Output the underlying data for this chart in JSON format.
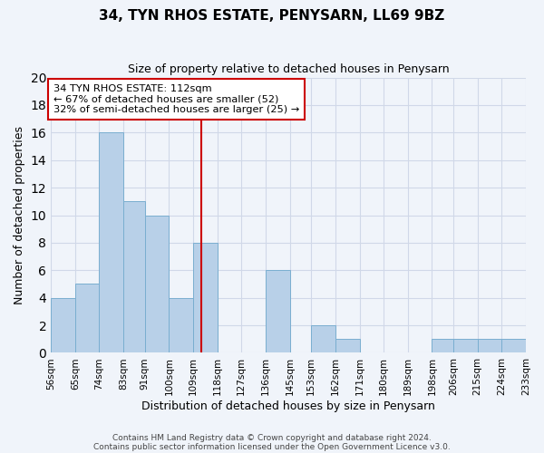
{
  "title": "34, TYN RHOS ESTATE, PENYSARN, LL69 9BZ",
  "subtitle": "Size of property relative to detached houses in Penysarn",
  "xlabel": "Distribution of detached houses by size in Penysarn",
  "ylabel": "Number of detached properties",
  "bar_color": "#b8d0e8",
  "bar_edge_color": "#7aaed0",
  "bins": [
    56,
    65,
    74,
    83,
    91,
    100,
    109,
    118,
    127,
    136,
    145,
    153,
    162,
    171,
    180,
    189,
    198,
    206,
    215,
    224,
    233
  ],
  "bin_labels": [
    "56sqm",
    "65sqm",
    "74sqm",
    "83sqm",
    "91sqm",
    "100sqm",
    "109sqm",
    "118sqm",
    "127sqm",
    "136sqm",
    "145sqm",
    "153sqm",
    "162sqm",
    "171sqm",
    "180sqm",
    "189sqm",
    "198sqm",
    "206sqm",
    "215sqm",
    "224sqm",
    "233sqm"
  ],
  "counts": [
    4,
    5,
    16,
    11,
    10,
    4,
    8,
    0,
    0,
    6,
    0,
    2,
    1,
    0,
    0,
    0,
    1,
    1,
    1,
    1
  ],
  "ylim": [
    0,
    20
  ],
  "yticks": [
    0,
    2,
    4,
    6,
    8,
    10,
    12,
    14,
    16,
    18,
    20
  ],
  "property_size": 112,
  "vline_x": 112,
  "annotation_title": "34 TYN RHOS ESTATE: 112sqm",
  "annotation_line1": "← 67% of detached houses are smaller (52)",
  "annotation_line2": "32% of semi-detached houses are larger (25) →",
  "annotation_box_color": "#ffffff",
  "annotation_box_edge": "#cc0000",
  "vline_color": "#cc0000",
  "grid_color": "#d0d8e8",
  "footer1": "Contains HM Land Registry data © Crown copyright and database right 2024.",
  "footer2": "Contains public sector information licensed under the Open Government Licence v3.0.",
  "background_color": "#f0f4fa"
}
